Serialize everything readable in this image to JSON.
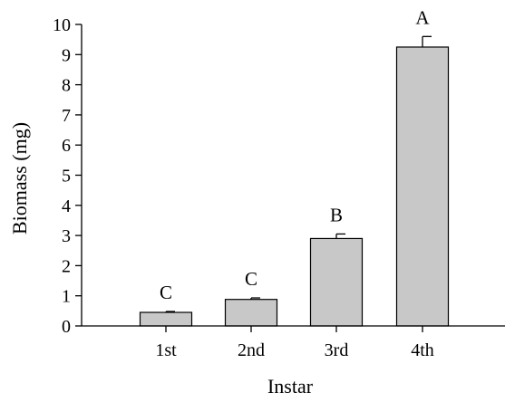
{
  "chart_data": {
    "type": "bar",
    "title": "",
    "xlabel": "Instar",
    "ylabel": "Biomass (mg)",
    "categories": [
      "1st",
      "2nd",
      "3rd",
      "4th"
    ],
    "values": [
      0.45,
      0.88,
      2.9,
      9.25
    ],
    "errors": [
      0.03,
      0.05,
      0.15,
      0.35
    ],
    "significance_letters": [
      "C",
      "C",
      "B",
      "A"
    ],
    "ylim": [
      0,
      10
    ],
    "yticks": [
      "0",
      "1",
      "2",
      "3",
      "4",
      "5",
      "6",
      "7",
      "8",
      "9",
      "10"
    ],
    "grid": false,
    "legend": "none",
    "bar_color": "#c8c8c8",
    "bar_edge_color": "#000000"
  }
}
